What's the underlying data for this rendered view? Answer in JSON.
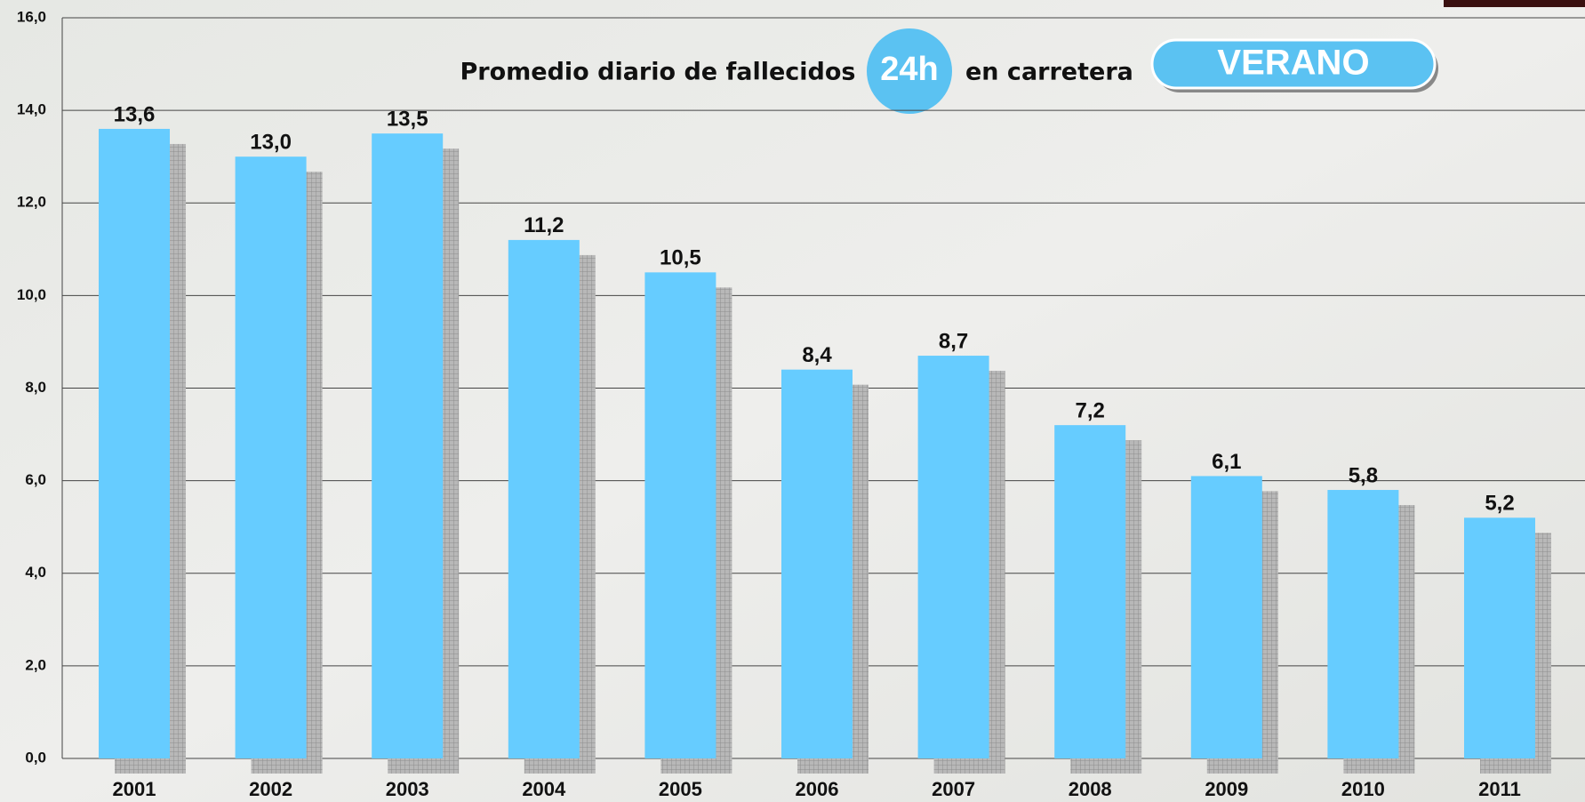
{
  "chart_data": {
    "type": "bar",
    "title": "Promedio diario de fallecidos",
    "badge": "24h",
    "title_suffix": "en carretera",
    "season": "VERANO",
    "categories": [
      "2001",
      "2002",
      "2003",
      "2004",
      "2005",
      "2006",
      "2007",
      "2008",
      "2009",
      "2010",
      "2011"
    ],
    "values": [
      13.6,
      13.0,
      13.5,
      11.2,
      10.5,
      8.4,
      8.7,
      7.2,
      6.1,
      5.8,
      5.2
    ],
    "value_labels": [
      "13,6",
      "13,0",
      "13,5",
      "11,2",
      "10,5",
      "8,4",
      "8,7",
      "7,2",
      "6,1",
      "5,8",
      "5,2"
    ],
    "color": "#66ccff",
    "ylim": [
      0,
      16
    ],
    "yticks": [
      {
        "value": 0,
        "label": "0,0"
      },
      {
        "value": 2,
        "label": "2,0"
      },
      {
        "value": 4,
        "label": "4,0"
      },
      {
        "value": 6,
        "label": "6,0"
      },
      {
        "value": 8,
        "label": "8,0"
      },
      {
        "value": 10,
        "label": "10,0"
      },
      {
        "value": 12,
        "label": "12,0"
      },
      {
        "value": 14,
        "label": "14,0"
      },
      {
        "value": 16,
        "label": "16,0"
      }
    ],
    "grid": true
  }
}
